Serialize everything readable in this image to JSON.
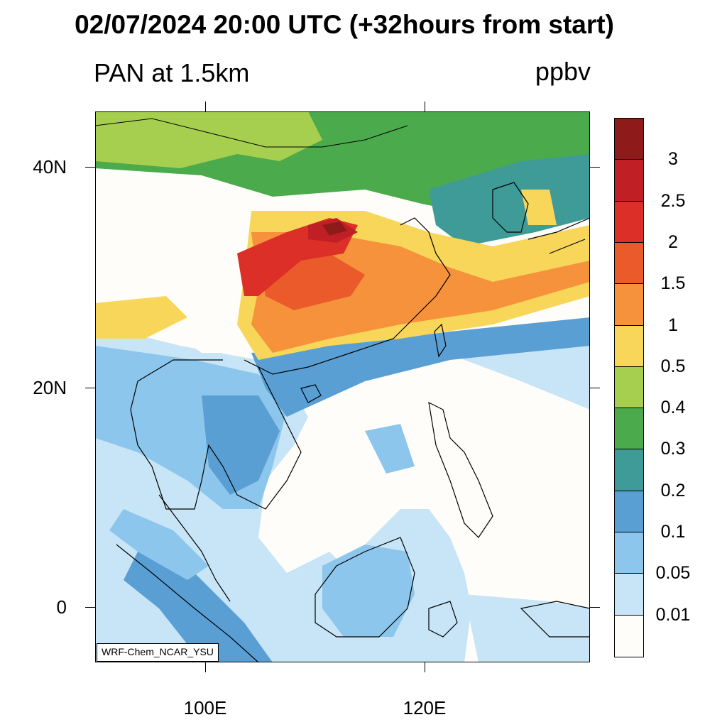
{
  "header": {
    "title": "02/07/2024 20:00 UTC (+32hours from start)",
    "field_label": "PAN at 1.5km",
    "units": "ppbv"
  },
  "map": {
    "lat_labels": [
      "40N",
      "20N",
      "0"
    ],
    "lon_labels": [
      "100E",
      "120E"
    ],
    "credit": "WRF-Chem_NCAR_YSU"
  },
  "colorbar": {
    "labels": [
      "3",
      "2.5",
      "2",
      "1.5",
      "1",
      "0.5",
      "0.4",
      "0.3",
      "0.2",
      "0.1",
      "0.05",
      "0.01"
    ],
    "colors": [
      "#8e1a1a",
      "#c01f26",
      "#dc2f28",
      "#ea5a2b",
      "#f5923b",
      "#f7d65a",
      "#a6cf4f",
      "#4aaa4c",
      "#3f9b97",
      "#5a9fd4",
      "#8cc6ec",
      "#c7e5f6",
      "#fffdfa"
    ]
  }
}
